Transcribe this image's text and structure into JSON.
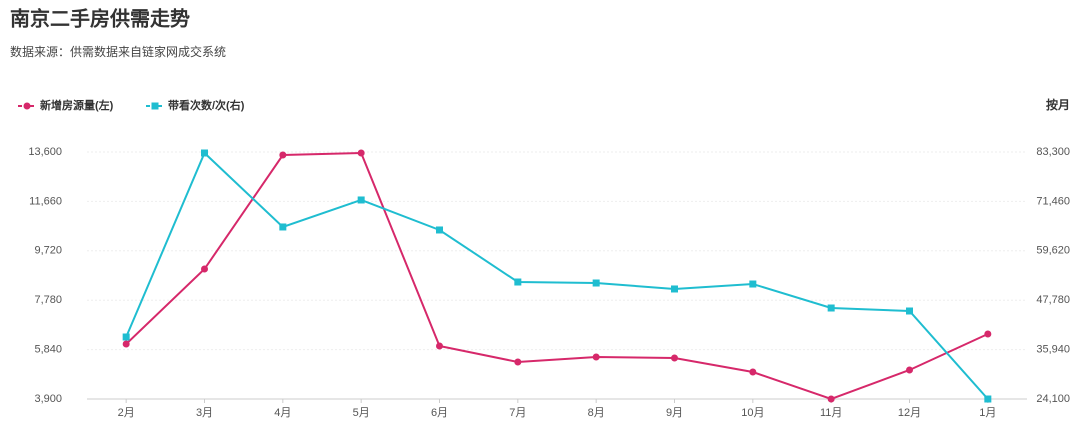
{
  "chart_data": {
    "type": "line",
    "title": "南京二手房供需走势",
    "subtitle": "数据来源：供需数据来自链家网成交系统",
    "period_label": "按月",
    "categories": [
      "2月",
      "3月",
      "4月",
      "5月",
      "6月",
      "7月",
      "8月",
      "9月",
      "10月",
      "11月",
      "12月",
      "1月"
    ],
    "series": [
      {
        "name": "新增房源量(左)",
        "color": "#d6286a",
        "marker": "circle",
        "values": [
          6060,
          9005,
          13482,
          13560,
          5981,
          5353,
          5549,
          5510,
          4960,
          3900,
          5039,
          6453
        ]
      },
      {
        "name": "带看次数/次(右)",
        "color": "#1fbdd0",
        "marker": "square",
        "axis": "y2",
        "values": [
          38960,
          83060,
          65330,
          71800,
          64610,
          52140,
          51900,
          50470,
          51660,
          45910,
          45190,
          24100
        ]
      }
    ],
    "ylim": [
      3900,
      13600
    ],
    "yticks": [
      {
        "value": 3900,
        "label": "3,900"
      },
      {
        "value": 5840,
        "label": "5,840"
      },
      {
        "value": 7780,
        "label": "7,780"
      },
      {
        "value": 9720,
        "label": "9,720"
      },
      {
        "value": 11660,
        "label": "11,660"
      },
      {
        "value": 13600,
        "label": "13,600"
      }
    ],
    "y2lim": [
      24100,
      83300
    ],
    "y2ticks": [
      {
        "value": 24100,
        "label": "24,100"
      },
      {
        "value": 35940,
        "label": "35,940"
      },
      {
        "value": 47780,
        "label": "47,780"
      },
      {
        "value": 59620,
        "label": "59,620"
      },
      {
        "value": 71460,
        "label": "71,460"
      },
      {
        "value": 83300,
        "label": "83,300"
      }
    ],
    "grid": true
  }
}
